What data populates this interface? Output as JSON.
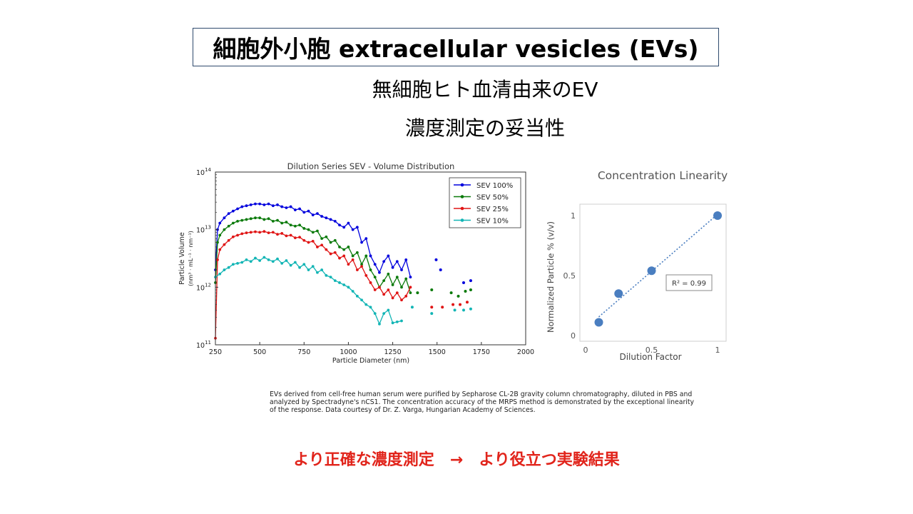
{
  "slide": {
    "title": "細胞外小胞 extracellular vesicles (EVs)",
    "subtitle_line1": "無細胞ヒト血清由来のEV",
    "subtitle_line2": "濃度測定の妥当性",
    "caption": "EVs derived from cell-free human serum were purified by Sepharose CL-2B gravity column chromatography, diluted in PBS and analyzed by Spectradyne's nCS1.  The concentration accuracy of the MRPS method is demonstrated by the exceptional linearity of the response.  Data courtesy of Dr. Z. Varga, Hungarian Academy of Sciences.",
    "conclusion": "より正確な濃度測定　→　より役立つ実験結果"
  },
  "chart_data": [
    {
      "type": "line",
      "title": "Dilution Series SEV - Volume Distribution",
      "xlabel": "Particle Diameter (nm)",
      "ylabel": "Particle Volume",
      "ylabel_units": "(nm³ · mL⁻¹ · nm⁻¹)",
      "xlim": [
        250,
        2000
      ],
      "ylim": [
        100000000000.0,
        100000000000000.0
      ],
      "yscale": "log",
      "x_ticks": [
        "250",
        "500",
        "750",
        "1000",
        "1250",
        "1500",
        "1750",
        "2000"
      ],
      "y_ticks": [
        {
          "base": "10",
          "exp": "14",
          "value": 100000000000000.0
        },
        {
          "base": "10",
          "exp": "13",
          "value": 10000000000000.0
        },
        {
          "base": "10",
          "exp": "12",
          "value": 1000000000000.0
        },
        {
          "base": "10",
          "exp": "11",
          "value": 100000000000.0
        }
      ],
      "legend_position": "top-right",
      "series": [
        {
          "name": "SEV 100%",
          "color": "#0000dd",
          "points": [
            [
              250,
              2000000000000.0
            ],
            [
              262,
              10000000000000.0
            ],
            [
              275,
              13000000000000.0
            ],
            [
              300,
              16000000000000.0
            ],
            [
              325,
              19000000000000.0
            ],
            [
              350,
              21000000000000.0
            ],
            [
              375,
              23000000000000.0
            ],
            [
              400,
              25000000000000.0
            ],
            [
              425,
              26000000000000.0
            ],
            [
              450,
              27000000000000.0
            ],
            [
              475,
              28000000000000.0
            ],
            [
              500,
              28000000000000.0
            ],
            [
              525,
              27000000000000.0
            ],
            [
              550,
              28000000000000.0
            ],
            [
              575,
              26000000000000.0
            ],
            [
              600,
              27000000000000.0
            ],
            [
              625,
              25000000000000.0
            ],
            [
              650,
              24000000000000.0
            ],
            [
              675,
              25000000000000.0
            ],
            [
              700,
              22000000000000.0
            ],
            [
              725,
              23000000000000.0
            ],
            [
              750,
              20000000000000.0
            ],
            [
              775,
              21000000000000.0
            ],
            [
              800,
              18000000000000.0
            ],
            [
              825,
              19000000000000.0
            ],
            [
              850,
              17000000000000.0
            ],
            [
              875,
              16000000000000.0
            ],
            [
              900,
              15000000000000.0
            ],
            [
              925,
              14000000000000.0
            ],
            [
              950,
              12000000000000.0
            ],
            [
              975,
              11000000000000.0
            ],
            [
              1000,
              13000000000000.0
            ],
            [
              1025,
              10000000000000.0
            ],
            [
              1050,
              11000000000000.0
            ],
            [
              1075,
              6000000000000.0
            ],
            [
              1100,
              7000000000000.0
            ],
            [
              1125,
              3500000000000.0
            ],
            [
              1150,
              2500000000000.0
            ],
            [
              1175,
              1800000000000.0
            ],
            [
              1200,
              2800000000000.0
            ],
            [
              1225,
              3500000000000.0
            ],
            [
              1250,
              2200000000000.0
            ],
            [
              1275,
              2800000000000.0
            ],
            [
              1300,
              2000000000000.0
            ],
            [
              1325,
              3000000000000.0
            ],
            [
              1350,
              1500000000000.0
            ]
          ]
        },
        {
          "name": "SEV 50%",
          "color": "#0a7a0a",
          "points": [
            [
              250,
              1200000000000.0
            ],
            [
              262,
              6000000000000.0
            ],
            [
              275,
              8000000000000.0
            ],
            [
              300,
              10000000000000.0
            ],
            [
              325,
              11500000000000.0
            ],
            [
              350,
              13000000000000.0
            ],
            [
              375,
              14000000000000.0
            ],
            [
              400,
              14500000000000.0
            ],
            [
              425,
              15000000000000.0
            ],
            [
              450,
              15500000000000.0
            ],
            [
              475,
              16000000000000.0
            ],
            [
              500,
              16000000000000.0
            ],
            [
              525,
              15000000000000.0
            ],
            [
              550,
              15500000000000.0
            ],
            [
              575,
              14000000000000.0
            ],
            [
              600,
              14500000000000.0
            ],
            [
              625,
              13000000000000.0
            ],
            [
              650,
              13500000000000.0
            ],
            [
              675,
              12000000000000.0
            ],
            [
              700,
              11500000000000.0
            ],
            [
              725,
              12000000000000.0
            ],
            [
              750,
              10500000000000.0
            ],
            [
              775,
              10000000000000.0
            ],
            [
              800,
              9000000000000.0
            ],
            [
              825,
              9500000000000.0
            ],
            [
              850,
              7000000000000.0
            ],
            [
              875,
              7500000000000.0
            ],
            [
              900,
              6000000000000.0
            ],
            [
              925,
              6500000000000.0
            ],
            [
              950,
              5000000000000.0
            ],
            [
              975,
              4500000000000.0
            ],
            [
              1000,
              5000000000000.0
            ],
            [
              1025,
              3500000000000.0
            ],
            [
              1050,
              4000000000000.0
            ],
            [
              1075,
              2500000000000.0
            ],
            [
              1100,
              3500000000000.0
            ],
            [
              1125,
              2000000000000.0
            ],
            [
              1150,
              1500000000000.0
            ],
            [
              1175,
              1000000000000.0
            ],
            [
              1200,
              1300000000000.0
            ],
            [
              1225,
              1700000000000.0
            ],
            [
              1250,
              1100000000000.0
            ],
            [
              1275,
              1500000000000.0
            ],
            [
              1300,
              1000000000000.0
            ],
            [
              1325,
              1400000000000.0
            ],
            [
              1350,
              800000000000.0
            ]
          ]
        },
        {
          "name": "SEV 25%",
          "color": "#e01515",
          "points": [
            [
              250,
              130000000000.0
            ],
            [
              262,
              3000000000000.0
            ],
            [
              275,
              4500000000000.0
            ],
            [
              300,
              5500000000000.0
            ],
            [
              325,
              6500000000000.0
            ],
            [
              350,
              7500000000000.0
            ],
            [
              375,
              8000000000000.0
            ],
            [
              400,
              8500000000000.0
            ],
            [
              425,
              8800000000000.0
            ],
            [
              450,
              9000000000000.0
            ],
            [
              475,
              9200000000000.0
            ],
            [
              500,
              9000000000000.0
            ],
            [
              525,
              9300000000000.0
            ],
            [
              550,
              8800000000000.0
            ],
            [
              575,
              9000000000000.0
            ],
            [
              600,
              8300000000000.0
            ],
            [
              625,
              8600000000000.0
            ],
            [
              650,
              7800000000000.0
            ],
            [
              675,
              8000000000000.0
            ],
            [
              700,
              7200000000000.0
            ],
            [
              725,
              7400000000000.0
            ],
            [
              750,
              6500000000000.0
            ],
            [
              775,
              6000000000000.0
            ],
            [
              800,
              6300000000000.0
            ],
            [
              825,
              5000000000000.0
            ],
            [
              850,
              5400000000000.0
            ],
            [
              875,
              4500000000000.0
            ],
            [
              900,
              3800000000000.0
            ],
            [
              925,
              4000000000000.0
            ],
            [
              950,
              3200000000000.0
            ],
            [
              975,
              3500000000000.0
            ],
            [
              1000,
              2500000000000.0
            ],
            [
              1025,
              3000000000000.0
            ],
            [
              1050,
              2000000000000.0
            ],
            [
              1075,
              2300000000000.0
            ],
            [
              1100,
              1600000000000.0
            ],
            [
              1125,
              1200000000000.0
            ],
            [
              1150,
              900000000000.0
            ],
            [
              1175,
              1000000000000.0
            ],
            [
              1200,
              750000000000.0
            ],
            [
              1225,
              900000000000.0
            ],
            [
              1250,
              650000000000.0
            ],
            [
              1275,
              800000000000.0
            ],
            [
              1300,
              600000000000.0
            ],
            [
              1325,
              700000000000.0
            ],
            [
              1350,
              1000000000000.0
            ]
          ]
        },
        {
          "name": "SEV 10%",
          "color": "#12b5b5",
          "points": [
            [
              250,
              1500000000000.0
            ],
            [
              275,
              1700000000000.0
            ],
            [
              300,
              2000000000000.0
            ],
            [
              325,
              2200000000000.0
            ],
            [
              350,
              2500000000000.0
            ],
            [
              375,
              2600000000000.0
            ],
            [
              400,
              2700000000000.0
            ],
            [
              425,
              3000000000000.0
            ],
            [
              450,
              2800000000000.0
            ],
            [
              475,
              3200000000000.0
            ],
            [
              500,
              2900000000000.0
            ],
            [
              525,
              3300000000000.0
            ],
            [
              550,
              3000000000000.0
            ],
            [
              575,
              2800000000000.0
            ],
            [
              600,
              3100000000000.0
            ],
            [
              625,
              2600000000000.0
            ],
            [
              650,
              2900000000000.0
            ],
            [
              675,
              2400000000000.0
            ],
            [
              700,
              2700000000000.0
            ],
            [
              725,
              2200000000000.0
            ],
            [
              750,
              2500000000000.0
            ],
            [
              775,
              2000000000000.0
            ],
            [
              800,
              2300000000000.0
            ],
            [
              825,
              1800000000000.0
            ],
            [
              850,
              2000000000000.0
            ],
            [
              875,
              1600000000000.0
            ],
            [
              900,
              1500000000000.0
            ],
            [
              925,
              1300000000000.0
            ],
            [
              950,
              1200000000000.0
            ],
            [
              975,
              1100000000000.0
            ],
            [
              1000,
              1000000000000.0
            ],
            [
              1025,
              850000000000.0
            ],
            [
              1050,
              700000000000.0
            ],
            [
              1075,
              600000000000.0
            ],
            [
              1100,
              500000000000.0
            ],
            [
              1125,
              450000000000.0
            ],
            [
              1150,
              350000000000.0
            ],
            [
              1175,
              230000000000.0
            ],
            [
              1200,
              350000000000.0
            ],
            [
              1225,
              400000000000.0
            ],
            [
              1250,
              240000000000.0
            ],
            [
              1275,
              250000000000.0
            ],
            [
              1300,
              260000000000.0
            ]
          ]
        }
      ],
      "scatter_tail": [
        {
          "series": "SEV 100%",
          "points": [
            [
              1495,
              3000000000000.0
            ],
            [
              1520,
              2000000000000.0
            ],
            [
              1650,
              1200000000000.0
            ],
            [
              1690,
              1300000000000.0
            ]
          ]
        },
        {
          "series": "SEV 50%",
          "points": [
            [
              1390,
              800000000000.0
            ],
            [
              1470,
              900000000000.0
            ],
            [
              1580,
              800000000000.0
            ],
            [
              1620,
              700000000000.0
            ],
            [
              1660,
              850000000000.0
            ],
            [
              1690,
              900000000000.0
            ]
          ]
        },
        {
          "series": "SEV 25%",
          "points": [
            [
              1470,
              450000000000.0
            ],
            [
              1530,
              450000000000.0
            ],
            [
              1590,
              500000000000.0
            ],
            [
              1630,
              500000000000.0
            ],
            [
              1670,
              550000000000.0
            ]
          ]
        },
        {
          "series": "SEV 10%",
          "points": [
            [
              1360,
              450000000000.0
            ],
            [
              1470,
              350000000000.0
            ],
            [
              1600,
              400000000000.0
            ],
            [
              1650,
              400000000000.0
            ],
            [
              1690,
              420000000000.0
            ]
          ]
        }
      ]
    },
    {
      "type": "scatter",
      "title": "Concentration Linearity",
      "xlabel": "Dilution Factor",
      "ylabel": "Normalized Particle % (v/v)",
      "xlim": [
        0,
        1
      ],
      "ylim": [
        0,
        1
      ],
      "x_ticks": [
        "0",
        "0.5",
        "1"
      ],
      "y_ticks": [
        "0",
        "0.5",
        "1"
      ],
      "annotation": "R² = 0.99",
      "trendline": "linear, dotted",
      "color": "#4a7ec0",
      "points": [
        [
          0.1,
          0.11
        ],
        [
          0.25,
          0.35
        ],
        [
          0.5,
          0.54
        ],
        [
          1.0,
          1.0
        ]
      ]
    }
  ]
}
